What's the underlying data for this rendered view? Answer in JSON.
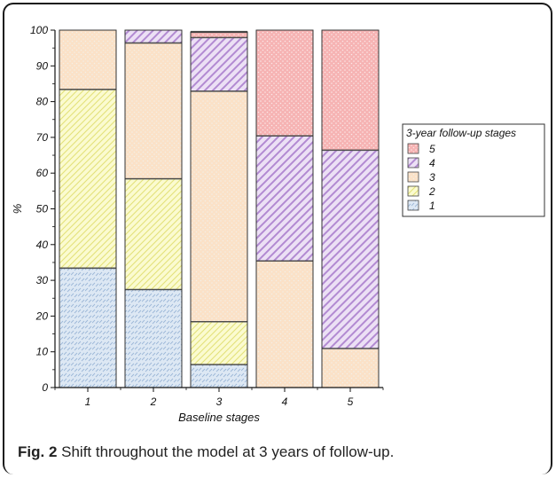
{
  "chart_data": {
    "type": "bar",
    "stacked": true,
    "categories": [
      "1",
      "2",
      "3",
      "4",
      "5"
    ],
    "xlabel": "Baseline stages",
    "ylabel": "%",
    "ylim": [
      0,
      100
    ],
    "yticks": [
      0,
      10,
      20,
      30,
      40,
      50,
      60,
      70,
      80,
      90,
      100
    ],
    "legend_title": "3-year follow-up stages",
    "legend_placement": "right",
    "series": [
      {
        "name": "1",
        "values": [
          33.5,
          27.5,
          6.5,
          0,
          0
        ],
        "color": "#dbe6f3",
        "pattern": "dense-dash"
      },
      {
        "name": "2",
        "values": [
          50,
          31,
          12,
          0,
          0
        ],
        "color": "#fbfbcf",
        "pattern": "hatch-diagonal"
      },
      {
        "name": "3",
        "values": [
          16.5,
          38,
          64.5,
          35.5,
          11
        ],
        "color": "#fce2c8",
        "pattern": "dots"
      },
      {
        "name": "4",
        "values": [
          0,
          3.5,
          15,
          35,
          55.5
        ],
        "color": "#e7d5f1",
        "pattern": "hatch-diagonal-bold"
      },
      {
        "name": "5",
        "values": [
          0,
          0,
          1.5,
          29.5,
          33.5
        ],
        "color": "#f8b9b9",
        "pattern": "dots"
      }
    ]
  },
  "caption": {
    "label": "Fig. 2",
    "text": "Shift throughout the model at 3 years of follow-up."
  }
}
